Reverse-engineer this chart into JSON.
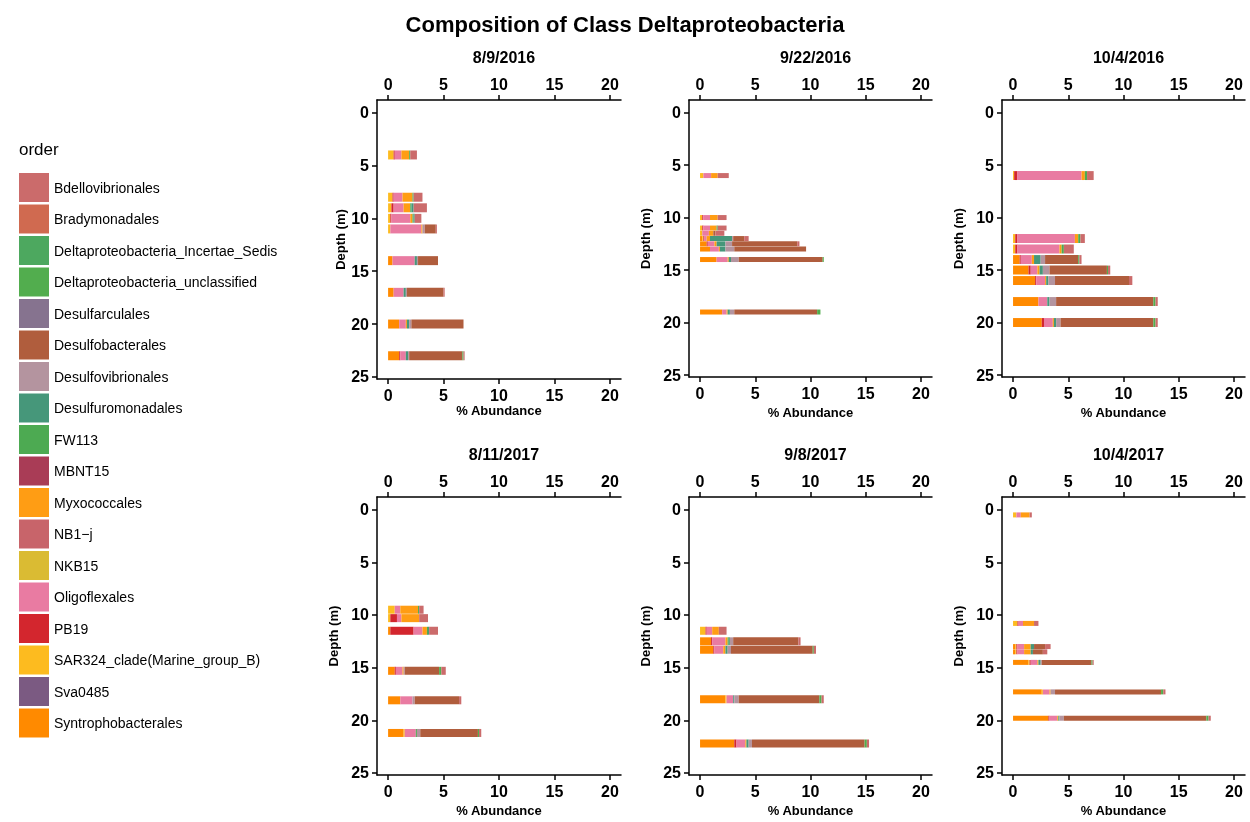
{
  "chart_data": [
    {
      "type": "bar",
      "orientation": "horizontal",
      "stacked": true,
      "title": "Composition of Class Deltaproteobacteria",
      "subtitle": "8/9/2016",
      "xlabel": "% Abundance",
      "ylabel": "Depth (m)",
      "legend_title": "order",
      "legend": "left",
      "x": [
        4,
        8,
        9,
        10,
        11,
        14,
        17,
        20,
        23
      ],
      "xlim": [
        -1,
        21
      ],
      "xticks": [
        0,
        5,
        10,
        15,
        20
      ],
      "x2lim": [
        -1,
        21
      ],
      "x2ticks": [
        0,
        5,
        10,
        15,
        20
      ],
      "ylim": [
        25.2,
        -1.2
      ],
      "yticks": [
        0,
        5,
        10,
        15,
        20,
        25
      ],
      "series": [
        {
          "name": "Syntrophobacterales",
          "color": "#ff8a00",
          "values": [
            null,
            null,
            null,
            null,
            null,
            0.4,
            0.5,
            1.0,
            1.0
          ]
        },
        {
          "name": "Sva0485",
          "color": "#7b5a82",
          "values": [
            null,
            null,
            null,
            null,
            null,
            null,
            null,
            null,
            null
          ]
        },
        {
          "name": "SAR324_clade(Marine_group_B)",
          "color": "#fdbb1f",
          "values": [
            0.5,
            0.4,
            0.3,
            0.2,
            0.2,
            null,
            null,
            null,
            null
          ]
        },
        {
          "name": "PB19",
          "color": "#d3262e",
          "values": [
            0.1,
            0.1,
            0.2,
            0.1,
            null,
            null,
            null,
            null,
            0.1
          ]
        },
        {
          "name": "Oligoflexales",
          "color": "#e97ba2",
          "values": [
            0.6,
            0.8,
            0.9,
            1.7,
            2.8,
            2.0,
            0.9,
            0.6,
            0.5
          ]
        },
        {
          "name": "NKB15",
          "color": "#dabb33",
          "values": [
            null,
            null,
            null,
            null,
            null,
            null,
            null,
            null,
            null
          ]
        },
        {
          "name": "NB1−j",
          "color": "#c8646a",
          "values": [
            null,
            null,
            null,
            null,
            null,
            null,
            null,
            null,
            null
          ]
        },
        {
          "name": "Myxococcales",
          "color": "#ff9d14",
          "values": [
            0.7,
            0.9,
            0.6,
            0.2,
            0.1,
            null,
            null,
            0.1,
            null
          ]
        },
        {
          "name": "MBNT15",
          "color": "#a93c56",
          "values": [
            null,
            null,
            null,
            null,
            null,
            null,
            null,
            null,
            null
          ]
        },
        {
          "name": "FW113",
          "color": "#4daa52",
          "values": [
            0.1,
            0.1,
            0.1,
            0.1,
            null,
            null,
            null,
            null,
            null
          ]
        },
        {
          "name": "Desulfuromonadales",
          "color": "#46977a",
          "values": [
            null,
            null,
            0.2,
            0.1,
            null,
            0.2,
            0.2,
            0.2,
            0.2
          ]
        },
        {
          "name": "Desulfovibrionales",
          "color": "#b4949f",
          "values": [
            null,
            null,
            null,
            null,
            0.2,
            0.1,
            0.1,
            0.2,
            0.1
          ]
        },
        {
          "name": "Desulfobacterales",
          "color": "#b05d3d",
          "values": [
            null,
            null,
            null,
            null,
            1.0,
            1.8,
            3.3,
            4.7,
            4.8
          ]
        },
        {
          "name": "Desulfarculales",
          "color": "#86738f",
          "values": [
            null,
            null,
            null,
            null,
            null,
            null,
            null,
            null,
            null
          ]
        },
        {
          "name": "Deltaproteobacteria_unclassified",
          "color": "#52ad4e",
          "values": [
            null,
            null,
            null,
            null,
            null,
            null,
            null,
            null,
            0.1
          ]
        },
        {
          "name": "Deltaproteobacteria_Incertae_Sedis",
          "color": "#4da85f",
          "values": [
            null,
            null,
            null,
            null,
            null,
            null,
            null,
            null,
            null
          ]
        },
        {
          "name": "Bradymonadales",
          "color": "#d06a50",
          "values": [
            null,
            null,
            null,
            null,
            null,
            null,
            null,
            null,
            null
          ]
        },
        {
          "name": "Bdellovibrionales",
          "color": "#cb6b6b",
          "values": [
            0.6,
            0.8,
            1.2,
            0.6,
            0.1,
            null,
            0.1,
            null,
            0.1
          ]
        }
      ]
    },
    {
      "type": "bar",
      "orientation": "horizontal",
      "stacked": true,
      "title": "9/22/2016",
      "xlabel": "% Abundance",
      "ylabel": "Depth (m)",
      "x": [
        6,
        10,
        11,
        11.5,
        12,
        12.5,
        13,
        14,
        19
      ],
      "xlim": [
        -1,
        21
      ],
      "xticks": [
        0,
        5,
        10,
        15,
        20
      ],
      "x2lim": [
        -1,
        21
      ],
      "x2ticks": [
        0,
        5,
        10,
        15,
        20
      ],
      "ylim": [
        25.2,
        -1.2
      ],
      "yticks": [
        0,
        5,
        10,
        15,
        20,
        25
      ],
      "series": [
        {
          "color": "#ff8a00",
          "values": [
            null,
            null,
            null,
            null,
            0.2,
            0.6,
            0.9,
            1.5,
            2.0
          ]
        },
        {
          "color": "#fdbb1f",
          "values": [
            0.3,
            0.2,
            0.2,
            0.2,
            0.1,
            null,
            null,
            null,
            null
          ]
        },
        {
          "color": "#d3262e",
          "values": [
            null,
            0.1,
            0.1,
            null,
            0.1,
            0.1,
            null,
            null,
            null
          ]
        },
        {
          "color": "#e97ba2",
          "values": [
            0.7,
            0.6,
            0.6,
            0.6,
            0.2,
            0.6,
            0.8,
            1.0,
            0.4
          ]
        },
        {
          "color": "#ff9d14",
          "values": [
            0.6,
            0.7,
            0.6,
            0.4,
            0.3,
            0.2,
            0.1,
            0.1,
            0.1
          ]
        },
        {
          "color": "#4daa52",
          "values": [
            null,
            null,
            0.1,
            null,
            null,
            null,
            null,
            null,
            null
          ]
        },
        {
          "color": "#46977a",
          "values": [
            null,
            null,
            null,
            null,
            2.0,
            0.8,
            0.5,
            0.2,
            0.2
          ]
        },
        {
          "color": "#b4949f",
          "values": [
            null,
            null,
            null,
            null,
            0.1,
            0.6,
            0.8,
            0.7,
            0.4
          ]
        },
        {
          "color": "#b05d3d",
          "values": [
            null,
            null,
            null,
            0.2,
            1.0,
            5.9,
            6.5,
            7.6,
            7.5
          ]
        },
        {
          "color": "#52ad4e",
          "values": [
            null,
            null,
            null,
            null,
            null,
            null,
            null,
            0.1,
            0.3
          ]
        },
        {
          "color": "#cb6b6b",
          "values": [
            1.0,
            0.8,
            0.8,
            0.8,
            0.4,
            0.2,
            null,
            null,
            null
          ]
        }
      ]
    },
    {
      "type": "bar",
      "orientation": "horizontal",
      "stacked": true,
      "title": "10/4/2016",
      "xlabel": "% Abundance",
      "ylabel": "Depth (m)",
      "x": [
        6,
        12,
        13,
        14,
        15,
        16,
        18,
        20
      ],
      "xlim": [
        -1,
        21
      ],
      "xticks": [
        0,
        5,
        10,
        15,
        20
      ],
      "x2lim": [
        -1,
        21
      ],
      "x2ticks": [
        0,
        5,
        10,
        15,
        20
      ],
      "ylim": [
        25.2,
        -1.2
      ],
      "yticks": [
        0,
        5,
        10,
        15,
        20,
        25
      ],
      "series": [
        {
          "color": "#ff8a00",
          "values": [
            null,
            null,
            null,
            0.6,
            1.4,
            2.0,
            2.3,
            2.6
          ]
        },
        {
          "color": "#fdbb1f",
          "values": [
            0.1,
            0.2,
            0.2,
            null,
            null,
            null,
            null,
            null
          ]
        },
        {
          "color": "#d3262e",
          "values": [
            0.3,
            0.2,
            0.2,
            0.1,
            0.2,
            0.1,
            null,
            0.2
          ]
        },
        {
          "color": "#e97ba2",
          "values": [
            5.8,
            5.2,
            3.8,
            1.0,
            0.6,
            0.8,
            0.8,
            0.8
          ]
        },
        {
          "color": "#ff9d14",
          "values": [
            0.3,
            0.3,
            0.2,
            0.2,
            0.2,
            0.1,
            null,
            0.1
          ]
        },
        {
          "color": "#4daa52",
          "values": [
            0.2,
            0.2,
            0.2,
            null,
            null,
            null,
            null,
            null
          ]
        },
        {
          "color": "#46977a",
          "values": [
            null,
            null,
            null,
            0.6,
            0.3,
            0.2,
            0.2,
            0.2
          ]
        },
        {
          "color": "#b4949f",
          "values": [
            null,
            null,
            null,
            0.4,
            0.6,
            0.6,
            0.6,
            0.4
          ]
        },
        {
          "color": "#b05d3d",
          "values": [
            null,
            null,
            null,
            3.0,
            5.2,
            6.7,
            8.8,
            8.4
          ]
        },
        {
          "color": "#52ad4e",
          "values": [
            null,
            null,
            null,
            0.1,
            0.1,
            null,
            0.2,
            0.2
          ]
        },
        {
          "color": "#cb6b6b",
          "values": [
            0.6,
            0.4,
            0.9,
            0.2,
            0.2,
            0.3,
            0.2,
            0.2
          ]
        }
      ]
    },
    {
      "type": "bar",
      "orientation": "horizontal",
      "stacked": true,
      "title": "8/11/2017",
      "xlabel": "% Abundance",
      "ylabel": "Depth (m)",
      "x": [
        9.5,
        10.3,
        11.5,
        15.3,
        18.1,
        21.2
      ],
      "xlim": [
        -1,
        21
      ],
      "xticks": [
        0,
        5,
        10,
        15,
        20
      ],
      "x2lim": [
        -1,
        21
      ],
      "x2ticks": [
        0,
        5,
        10,
        15,
        20
      ],
      "ylim": [
        25.2,
        -1.2
      ],
      "yticks": [
        0,
        5,
        10,
        15,
        20,
        25
      ],
      "series": [
        {
          "color": "#ff8a00",
          "values": [
            null,
            null,
            0.2,
            0.6,
            1.1,
            1.4
          ]
        },
        {
          "color": "#fdbb1f",
          "values": [
            0.6,
            0.2,
            null,
            null,
            null,
            0.1
          ]
        },
        {
          "color": "#d3262e",
          "values": [
            null,
            0.6,
            2.1,
            0.1,
            null,
            null
          ]
        },
        {
          "color": "#e97ba2",
          "values": [
            0.5,
            0.4,
            0.8,
            0.6,
            1.1,
            1.0
          ]
        },
        {
          "color": "#ff9d14",
          "values": [
            1.6,
            1.6,
            0.4,
            0.1,
            null,
            null
          ]
        },
        {
          "color": "#4daa52",
          "values": [
            0.1,
            null,
            0.1,
            null,
            null,
            0.1
          ]
        },
        {
          "color": "#46977a",
          "values": [
            null,
            null,
            0.1,
            null,
            null,
            null
          ]
        },
        {
          "color": "#b4949f",
          "values": [
            null,
            null,
            null,
            0.1,
            0.2,
            0.3
          ]
        },
        {
          "color": "#b05d3d",
          "values": [
            null,
            null,
            null,
            3.1,
            4.0,
            5.2
          ]
        },
        {
          "color": "#52ad4e",
          "values": [
            null,
            null,
            null,
            0.2,
            null,
            0.1
          ]
        },
        {
          "color": "#cb6b6b",
          "values": [
            0.4,
            0.8,
            0.8,
            0.4,
            0.2,
            0.2
          ]
        }
      ]
    },
    {
      "type": "bar",
      "orientation": "horizontal",
      "stacked": true,
      "title": "9/8/2017",
      "xlabel": "% Abundance",
      "ylabel": "Depth (m)",
      "x": [
        11.5,
        12.5,
        13.3,
        18,
        22.2
      ],
      "xlim": [
        -1,
        21
      ],
      "xticks": [
        0,
        5,
        10,
        15,
        20
      ],
      "x2lim": [
        -1,
        21
      ],
      "x2ticks": [
        0,
        5,
        10,
        15,
        20
      ],
      "ylim": [
        25.2,
        -1.2
      ],
      "yticks": [
        0,
        5,
        10,
        15,
        20,
        25
      ],
      "series": [
        {
          "color": "#ff8a00",
          "values": [
            null,
            1.0,
            1.2,
            2.3,
            3.1
          ]
        },
        {
          "color": "#fdbb1f",
          "values": [
            0.5,
            null,
            null,
            0.1,
            null
          ]
        },
        {
          "color": "#d3262e",
          "values": [
            0.1,
            0.1,
            0.1,
            null,
            0.2
          ]
        },
        {
          "color": "#e97ba2",
          "values": [
            0.5,
            1.2,
            0.8,
            0.6,
            0.8
          ]
        },
        {
          "color": "#ff9d14",
          "values": [
            0.6,
            0.2,
            0.2,
            null,
            0.1
          ]
        },
        {
          "color": "#4daa52",
          "values": [
            null,
            0.1,
            null,
            null,
            null
          ]
        },
        {
          "color": "#46977a",
          "values": [
            null,
            0.1,
            0.2,
            0.1,
            0.2
          ]
        },
        {
          "color": "#b4949f",
          "values": [
            null,
            0.3,
            0.3,
            0.4,
            0.3
          ]
        },
        {
          "color": "#b05d3d",
          "values": [
            null,
            5.9,
            7.4,
            7.3,
            10.2
          ]
        },
        {
          "color": "#52ad4e",
          "values": [
            null,
            null,
            0.1,
            0.2,
            0.2
          ]
        },
        {
          "color": "#cb6b6b",
          "values": [
            0.7,
            0.2,
            0.2,
            0.2,
            0.2
          ]
        }
      ]
    },
    {
      "type": "bar",
      "orientation": "horizontal",
      "stacked": true,
      "title": "10/4/2017",
      "xlabel": "% Abundance",
      "ylabel": "Depth (m)",
      "x": [
        0.5,
        10.8,
        13,
        13.5,
        14.5,
        17.3,
        19.8
      ],
      "xlim": [
        -1,
        21
      ],
      "xticks": [
        0,
        5,
        10,
        15,
        20
      ],
      "x2lim": [
        -1,
        21
      ],
      "x2ticks": [
        0,
        5,
        10,
        15,
        20
      ],
      "ylim": [
        25.2,
        -1.2
      ],
      "yticks": [
        0,
        5,
        10,
        15,
        20,
        25
      ],
      "series": [
        {
          "color": "#ff8a00",
          "values": [
            null,
            null,
            0.2,
            0.2,
            1.4,
            2.6,
            3.2
          ]
        },
        {
          "color": "#fdbb1f",
          "values": [
            0.3,
            0.4,
            0.1,
            0.1,
            0.1,
            0.1,
            null
          ]
        },
        {
          "color": "#d3262e",
          "values": [
            null,
            0.1,
            0.1,
            0.1,
            0.1,
            null,
            0.1
          ]
        },
        {
          "color": "#e97ba2",
          "values": [
            0.4,
            0.4,
            0.6,
            0.6,
            0.6,
            0.6,
            0.7
          ]
        },
        {
          "color": "#ff9d14",
          "values": [
            0.8,
            1.0,
            0.6,
            0.6,
            0.1,
            0.1,
            0.1
          ]
        },
        {
          "color": "#46977a",
          "values": [
            null,
            null,
            0.3,
            0.2,
            0.2,
            null,
            0.1
          ]
        },
        {
          "color": "#b4949f",
          "values": [
            null,
            null,
            null,
            null,
            0.1,
            0.4,
            0.4
          ]
        },
        {
          "color": "#b05d3d",
          "values": [
            null,
            null,
            1.0,
            0.9,
            4.5,
            9.6,
            12.9
          ]
        },
        {
          "color": "#52ad4e",
          "values": [
            null,
            null,
            null,
            null,
            0.1,
            0.2,
            0.2
          ]
        },
        {
          "color": "#cb6b6b",
          "values": [
            0.2,
            0.4,
            0.5,
            0.4,
            0.1,
            0.2,
            0.2
          ]
        }
      ]
    }
  ]
}
